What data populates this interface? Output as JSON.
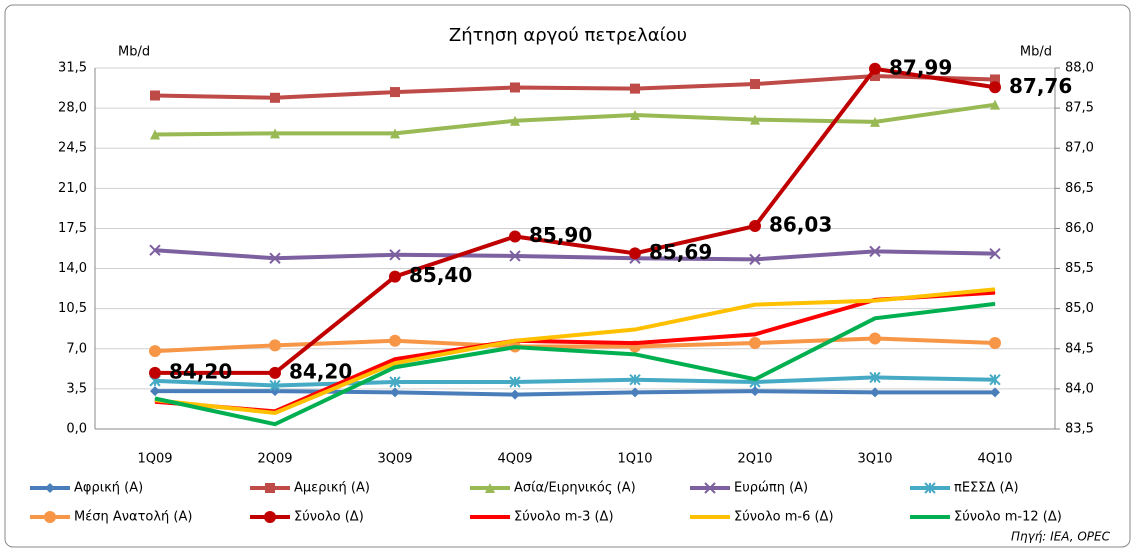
{
  "chart_data": {
    "type": "line",
    "title": "Ζήτηση αργού πετρελαίου",
    "y_label": "Mb/d",
    "y2_label": "Mb/d",
    "source": "Πηγή: IEA, OPEC",
    "categories": [
      "1Q09",
      "2Q09",
      "3Q09",
      "4Q09",
      "1Q10",
      "2Q10",
      "3Q10",
      "4Q10"
    ],
    "ylim": [
      0,
      31.5
    ],
    "yticks": [
      {
        "value": 0,
        "label": "0,0"
      },
      {
        "value": 3.5,
        "label": "3,5"
      },
      {
        "value": 7,
        "label": "7,0"
      },
      {
        "value": 10.5,
        "label": "10,5"
      },
      {
        "value": 14,
        "label": "14,0"
      },
      {
        "value": 17.5,
        "label": "17,5"
      },
      {
        "value": 21,
        "label": "21,0"
      },
      {
        "value": 24.5,
        "label": "24,5"
      },
      {
        "value": 28,
        "label": "28,0"
      },
      {
        "value": 31.5,
        "label": "31,5"
      }
    ],
    "y2lim": [
      83.5,
      88
    ],
    "y2ticks": [
      {
        "value": 83.5,
        "label": "83,5"
      },
      {
        "value": 84,
        "label": "84,0"
      },
      {
        "value": 84.5,
        "label": "84,5"
      },
      {
        "value": 85,
        "label": "85,0"
      },
      {
        "value": 85.5,
        "label": "85,5"
      },
      {
        "value": 86,
        "label": "86,0"
      },
      {
        "value": 86.5,
        "label": "86,5"
      },
      {
        "value": 87,
        "label": "87,0"
      },
      {
        "value": 87.5,
        "label": "87,5"
      },
      {
        "value": 88,
        "label": "88,0"
      }
    ],
    "grid": true,
    "series": [
      {
        "name": "Αφρική (Α)",
        "color": "#4a7ebb",
        "marker": "diamond",
        "values": [
          3.3,
          3.3,
          3.2,
          3.0,
          3.2,
          3.3,
          3.2,
          3.2
        ]
      },
      {
        "name": "Αμερική (Α)",
        "color": "#be4b48",
        "marker": "square",
        "values": [
          29.1,
          28.9,
          29.4,
          29.8,
          29.7,
          30.1,
          30.8,
          30.5
        ]
      },
      {
        "name": "Ασία/Ειρηνικός (Α)",
        "color": "#98b954",
        "marker": "triangle",
        "values": [
          25.7,
          25.8,
          25.8,
          26.9,
          27.4,
          27.0,
          26.8,
          28.3
        ]
      },
      {
        "name": "Ευρώπη (Α)",
        "color": "#7d60a0",
        "marker": "x",
        "values": [
          15.6,
          14.9,
          15.2,
          15.1,
          14.9,
          14.8,
          15.5,
          15.3
        ]
      },
      {
        "name": "πΕΣΣΔ (Α)",
        "color": "#46aac5",
        "marker": "star",
        "values": [
          4.2,
          3.8,
          4.1,
          4.1,
          4.3,
          4.1,
          4.5,
          4.3
        ]
      },
      {
        "name": "Μέση Ανατολή (Α)",
        "color": "#f79646",
        "marker": "circle",
        "values": [
          6.8,
          7.3,
          7.7,
          7.2,
          7.2,
          7.5,
          7.9,
          7.5
        ]
      },
      {
        "name": "Σύνολο (Δ)",
        "color": "#c00000",
        "marker": "circle",
        "axis": "y2",
        "values": [
          84.2,
          84.2,
          85.4,
          85.9,
          85.69,
          86.03,
          87.99,
          87.76
        ],
        "value_labels": [
          "84,20",
          "84,20",
          "85,40",
          "85,90",
          "85,69",
          "86,03",
          "87,99",
          "87,76"
        ]
      },
      {
        "name": "Σύνολο m-3 (Δ)",
        "color": "#ff0000",
        "marker": "none",
        "axis": "y2",
        "values": [
          83.84,
          83.72,
          84.37,
          84.6,
          84.57,
          84.68,
          85.11,
          85.2
        ]
      },
      {
        "name": "Σύνολο m-6 (Δ)",
        "color": "#ffc000",
        "marker": "none",
        "axis": "y2",
        "values": [
          83.86,
          83.7,
          84.32,
          84.6,
          84.74,
          85.05,
          85.1,
          85.24
        ]
      },
      {
        "name": "Σύνολο m-12 (Δ)",
        "color": "#00b050",
        "marker": "none",
        "axis": "y2",
        "values": [
          83.88,
          83.56,
          84.27,
          84.52,
          84.43,
          84.12,
          84.88,
          85.06
        ]
      }
    ]
  }
}
